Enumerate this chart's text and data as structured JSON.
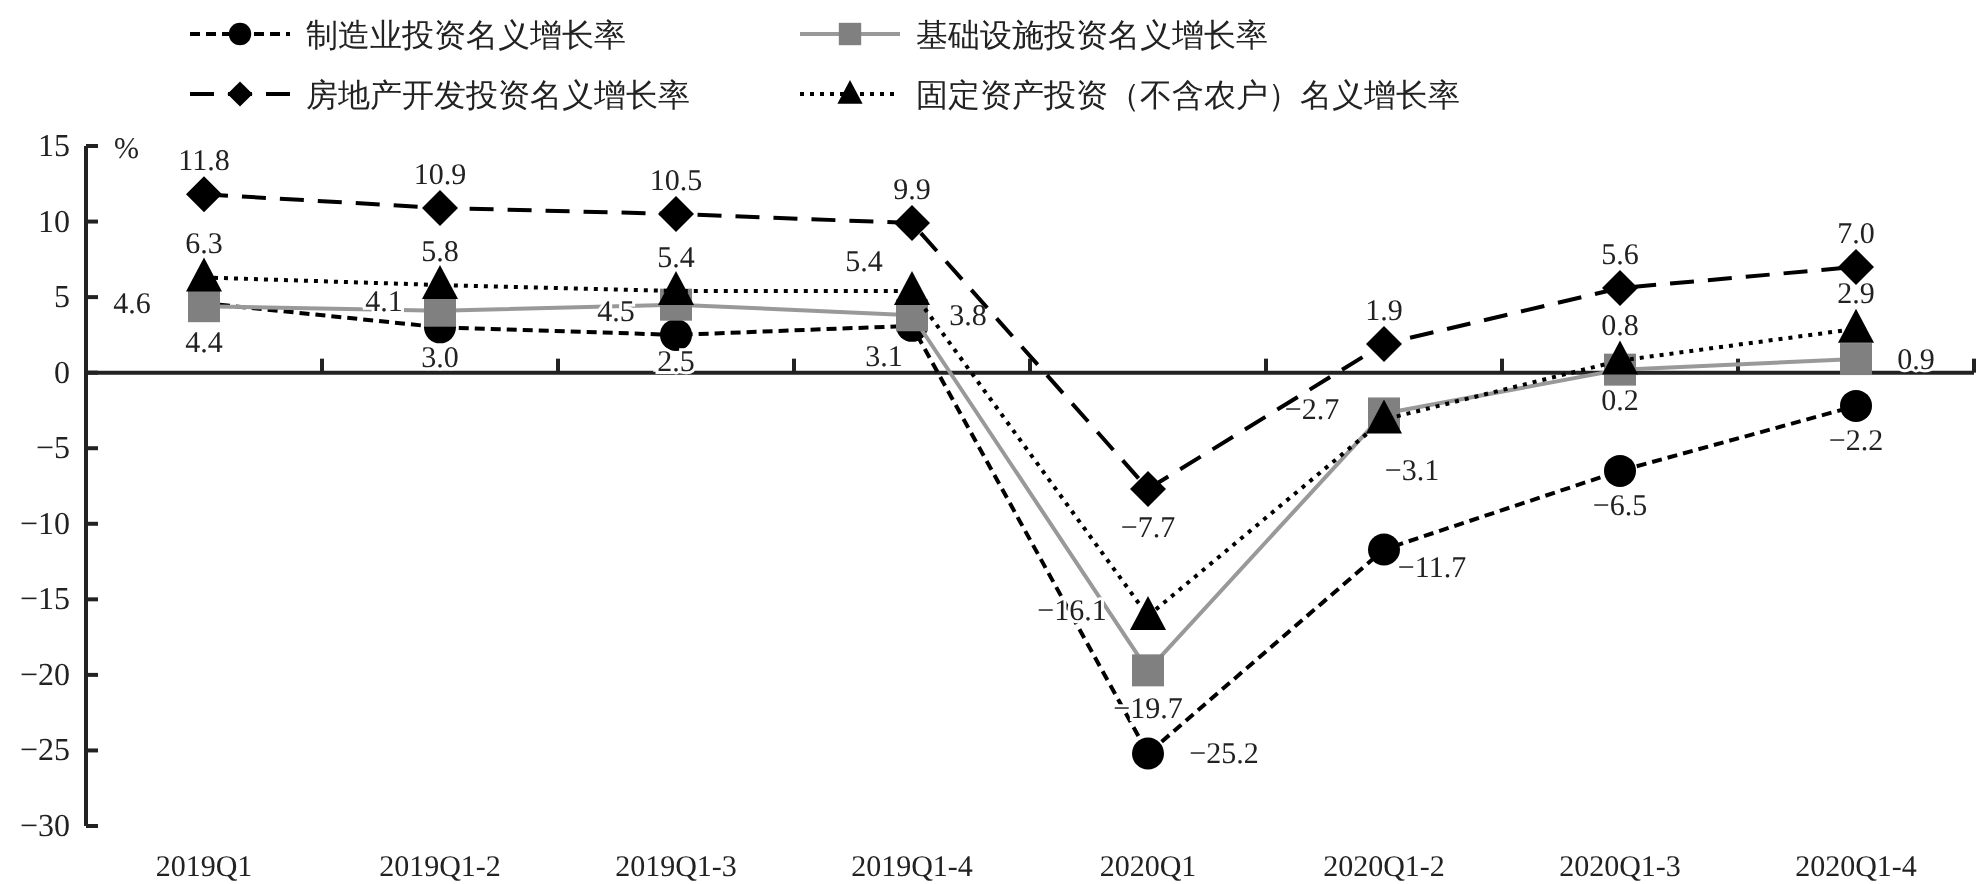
{
  "chart_data": {
    "type": "line",
    "ylabel": "%",
    "categories": [
      "2019Q1",
      "2019Q1-2",
      "2019Q1-3",
      "2019Q1-4",
      "2020Q1",
      "2020Q1-2",
      "2020Q1-3",
      "2020Q1-4"
    ],
    "ylim": [
      -30,
      15
    ],
    "yticks": [
      -30,
      -25,
      -20,
      -15,
      -10,
      -5,
      0,
      5,
      10,
      15
    ],
    "legend": "top",
    "series": [
      {
        "name": "制造业投资名义增长率",
        "color": "#000000",
        "marker": "circle",
        "line_style": "dashed",
        "values": [
          4.6,
          3.0,
          2.5,
          3.1,
          -25.2,
          -11.7,
          -6.5,
          -2.2
        ],
        "value_labels": [
          "4.6",
          "3.0",
          "2.5",
          "3.1",
          "−25.2",
          "−11.7",
          "−6.5",
          "−2.2"
        ]
      },
      {
        "name": "基础设施投资名义增长率",
        "color": "#808080",
        "marker": "square",
        "line_style": "solid",
        "values": [
          4.4,
          4.1,
          4.5,
          3.8,
          -19.7,
          -2.7,
          0.2,
          0.9
        ],
        "value_labels": [
          "4.4",
          "4.1",
          "4.5",
          "3.8",
          "−19.7",
          "−2.7",
          "0.2",
          "0.9"
        ]
      },
      {
        "name": "房地产开发投资名义增长率",
        "color": "#000000",
        "marker": "diamond",
        "line_style": "dashed",
        "values": [
          11.8,
          10.9,
          10.5,
          9.9,
          -7.7,
          1.9,
          5.6,
          7.0
        ],
        "value_labels": [
          "11.8",
          "10.9",
          "10.5",
          "9.9",
          "−7.7",
          "1.9",
          "5.6",
          "7.0"
        ]
      },
      {
        "name": "固定资产投资（不含农户）名义增长率",
        "color": "#000000",
        "marker": "triangle",
        "line_style": "dotted",
        "values": [
          6.3,
          5.8,
          5.4,
          5.4,
          -16.1,
          -3.1,
          0.8,
          2.9
        ],
        "value_labels": [
          "6.3",
          "5.8",
          "5.4",
          "5.4",
          "−16.1",
          "−3.1",
          "0.8",
          "2.9"
        ]
      }
    ]
  }
}
